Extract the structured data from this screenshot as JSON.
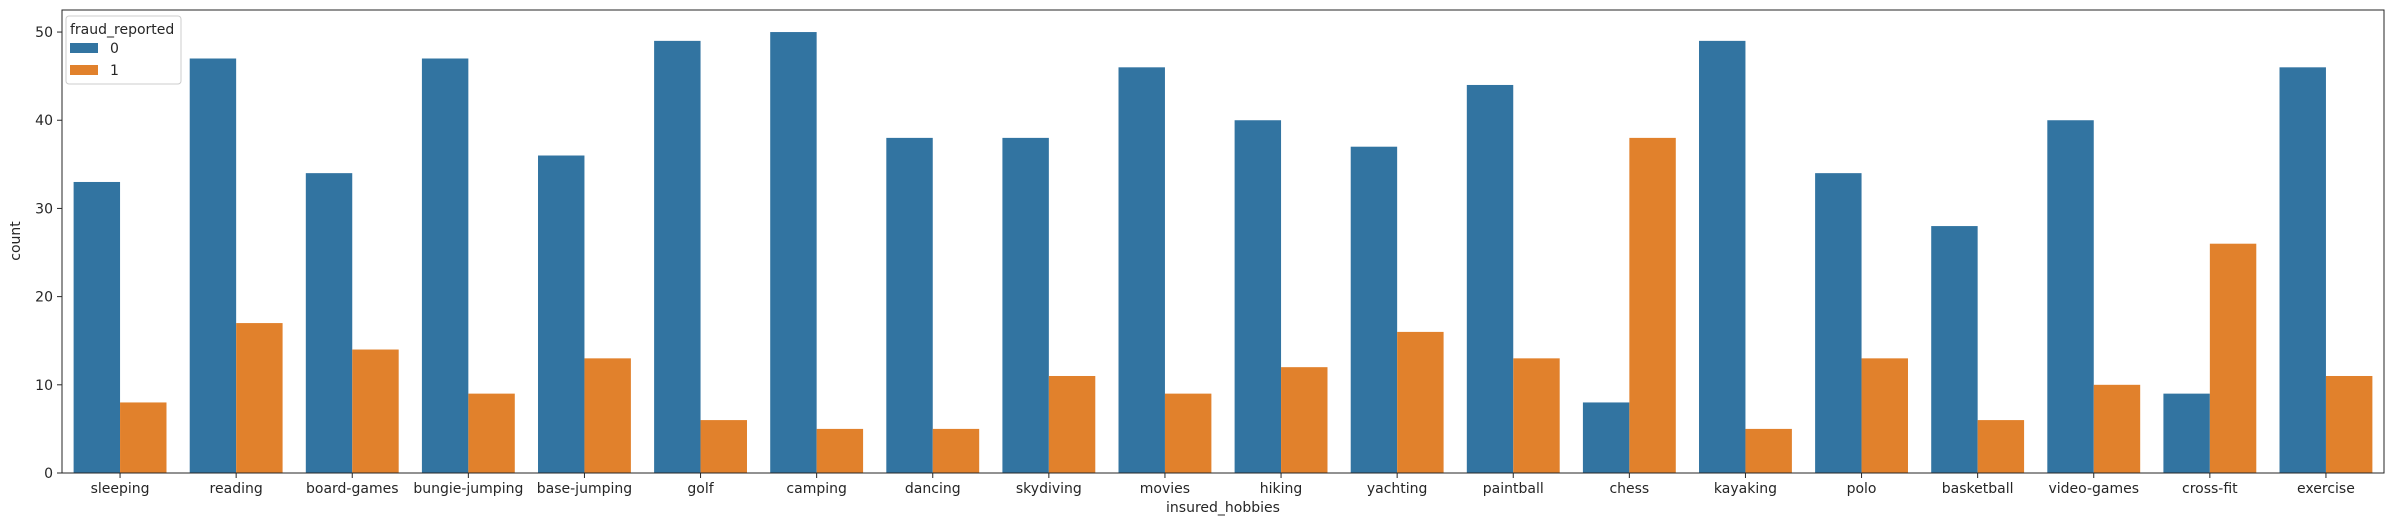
{
  "chart_data": {
    "type": "bar",
    "categories": [
      "sleeping",
      "reading",
      "board-games",
      "bungie-jumping",
      "base-jumping",
      "golf",
      "camping",
      "dancing",
      "skydiving",
      "movies",
      "hiking",
      "yachting",
      "paintball",
      "chess",
      "kayaking",
      "polo",
      "basketball",
      "video-games",
      "cross-fit",
      "exercise"
    ],
    "series": [
      {
        "name": "0",
        "color": "#3274a1",
        "values": [
          33,
          47,
          34,
          47,
          36,
          49,
          50,
          38,
          38,
          46,
          40,
          37,
          44,
          8,
          49,
          34,
          28,
          40,
          9,
          46
        ]
      },
      {
        "name": "1",
        "color": "#e1812c",
        "values": [
          8,
          17,
          14,
          9,
          13,
          6,
          5,
          5,
          11,
          9,
          12,
          16,
          13,
          38,
          5,
          13,
          6,
          10,
          26,
          11
        ]
      }
    ],
    "xlabel": "insured_hobbies",
    "ylabel": "count",
    "ylim": [
      0,
      52.5
    ],
    "yticks": [
      0,
      10,
      20,
      30,
      40,
      50
    ],
    "legend": {
      "title": "fraud_reported",
      "position": "top-left"
    },
    "grid": false
  }
}
